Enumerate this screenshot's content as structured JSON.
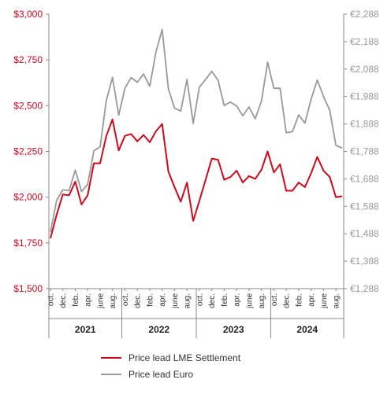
{
  "chart_data": {
    "type": "line",
    "title": "",
    "x": [
      "2020-10",
      "2020-11",
      "2020-12",
      "2021-01",
      "2021-02",
      "2021-03",
      "2021-04",
      "2021-05",
      "2021-06",
      "2021-07",
      "2021-08",
      "2021-09",
      "2021-10",
      "2021-11",
      "2021-12",
      "2022-01",
      "2022-02",
      "2022-03",
      "2022-04",
      "2022-05",
      "2022-06",
      "2022-07",
      "2022-08",
      "2022-09",
      "2022-10",
      "2022-11",
      "2022-12",
      "2023-01",
      "2023-02",
      "2023-03",
      "2023-04",
      "2023-05",
      "2023-06",
      "2023-07",
      "2023-08",
      "2023-09",
      "2023-10",
      "2023-11",
      "2023-12",
      "2024-01",
      "2024-02",
      "2024-03",
      "2024-04",
      "2024-05",
      "2024-06",
      "2024-07",
      "2024-08",
      "2024-09"
    ],
    "x_tick_labels": [
      {
        "x": "2020-10",
        "label": "oct."
      },
      {
        "x": "2020-12",
        "label": "dec."
      },
      {
        "x": "2021-02",
        "label": "feb."
      },
      {
        "x": "2021-04",
        "label": "apr."
      },
      {
        "x": "2021-06",
        "label": "june"
      },
      {
        "x": "2021-08",
        "label": "aug."
      },
      {
        "x": "2021-10",
        "label": "oct."
      },
      {
        "x": "2021-12",
        "label": "dec."
      },
      {
        "x": "2022-02",
        "label": "feb."
      },
      {
        "x": "2022-04",
        "label": "apr."
      },
      {
        "x": "2022-06",
        "label": "june"
      },
      {
        "x": "2022-08",
        "label": "aug."
      },
      {
        "x": "2022-10",
        "label": "oct."
      },
      {
        "x": "2022-12",
        "label": "dec."
      },
      {
        "x": "2023-02",
        "label": "feb."
      },
      {
        "x": "2023-04",
        "label": "apr."
      },
      {
        "x": "2023-06",
        "label": "june"
      },
      {
        "x": "2023-08",
        "label": "aug."
      },
      {
        "x": "2023-10",
        "label": "oct."
      },
      {
        "x": "2023-12",
        "label": "dec."
      },
      {
        "x": "2024-02",
        "label": "feb."
      },
      {
        "x": "2024-04",
        "label": "apr."
      },
      {
        "x": "2024-06",
        "label": "june"
      },
      {
        "x": "2024-08",
        "label": "aug."
      }
    ],
    "year_groups": [
      {
        "label": "2021",
        "from": "2020-10",
        "to": "2021-09"
      },
      {
        "label": "2022",
        "from": "2021-10",
        "to": "2022-09"
      },
      {
        "label": "2023",
        "from": "2022-10",
        "to": "2023-09"
      },
      {
        "label": "2024",
        "from": "2023-10",
        "to": "2024-09"
      }
    ],
    "y_left": {
      "range": [
        1500,
        3000
      ],
      "ticks": [
        1500,
        1750,
        2000,
        2250,
        2500,
        2750,
        3000
      ],
      "tick_labels": [
        "$1,500",
        "$1,750",
        "$2,000",
        "$2,250",
        "$2,500",
        "$2,750",
        "$3,000"
      ],
      "color": "#cc0a1e"
    },
    "y_right": {
      "range": [
        1288,
        2288
      ],
      "ticks": [
        1288,
        1388,
        1488,
        1588,
        1688,
        1788,
        1888,
        1988,
        2088,
        2188,
        2288
      ],
      "tick_labels": [
        "€1,288",
        "€1,388",
        "€1,488",
        "€1,588",
        "€1,688",
        "€1,788",
        "€1,888",
        "€1,988",
        "€2,088",
        "€2,188",
        "€2,288"
      ],
      "color": "#999999"
    },
    "series": [
      {
        "name": "Price lead LME Settlement",
        "axis": "left",
        "color": "#cc0a1e",
        "values": [
          1775,
          1905,
          2015,
          2010,
          2085,
          1960,
          2010,
          2185,
          2185,
          2335,
          2425,
          2255,
          2335,
          2345,
          2305,
          2340,
          2300,
          2360,
          2400,
          2140,
          2055,
          1975,
          2080,
          1870,
          1980,
          2095,
          2210,
          2205,
          2095,
          2110,
          2145,
          2080,
          2115,
          2100,
          2150,
          2250,
          2135,
          2180,
          2035,
          2035,
          2080,
          2055,
          2130,
          2220,
          2145,
          2110,
          2000,
          2005
        ]
      },
      {
        "name": "Price lead Euro",
        "axis": "right",
        "color": "#999999",
        "values": [
          1495,
          1610,
          1648,
          1645,
          1720,
          1642,
          1668,
          1790,
          1805,
          1974,
          2058,
          1920,
          2018,
          2057,
          2040,
          2070,
          2025,
          2150,
          2232,
          2016,
          1946,
          1935,
          2050,
          1890,
          2022,
          2050,
          2080,
          2047,
          1955,
          1968,
          1953,
          1918,
          1950,
          1907,
          1972,
          2113,
          2018,
          2018,
          1856,
          1860,
          1921,
          1891,
          1978,
          2048,
          1988,
          1938,
          1810,
          1800
        ]
      }
    ],
    "legend": {
      "position": "bottom",
      "entries": [
        "Price lead LME Settlement",
        "Price lead Euro"
      ]
    },
    "grid": false
  }
}
